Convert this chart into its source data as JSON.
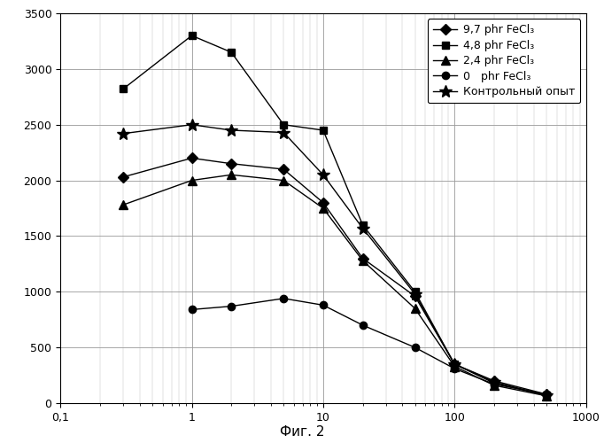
{
  "title": "",
  "fig_label": "Фиг. 2",
  "xlim": [
    0.1,
    1000
  ],
  "ylim": [
    0,
    3500
  ],
  "yticks": [
    0,
    500,
    1000,
    1500,
    2000,
    2500,
    3000,
    3500
  ],
  "background_color": "#ffffff",
  "series": [
    {
      "label": "9,7 phr FeCl₃",
      "marker": "D",
      "x": [
        0.3,
        1.0,
        2.0,
        5.0,
        10.0,
        20.0,
        50.0,
        100.0,
        200.0,
        500.0
      ],
      "y": [
        2030,
        2200,
        2150,
        2100,
        1800,
        1300,
        960,
        350,
        200,
        80
      ]
    },
    {
      "label": "4,8 phr FeCl₃",
      "marker": "s",
      "x": [
        0.3,
        1.0,
        2.0,
        5.0,
        10.0,
        20.0,
        50.0,
        100.0,
        200.0,
        500.0
      ],
      "y": [
        2820,
        3300,
        3150,
        2500,
        2450,
        1600,
        1000,
        350,
        180,
        70
      ]
    },
    {
      "label": "2,4 phr FeCl₃",
      "marker": "^",
      "x": [
        0.3,
        1.0,
        2.0,
        5.0,
        10.0,
        20.0,
        50.0,
        100.0,
        200.0,
        500.0
      ],
      "y": [
        1780,
        2000,
        2050,
        2000,
        1750,
        1280,
        850,
        330,
        160,
        65
      ]
    },
    {
      "label": "0   phr FeCl₃",
      "marker": "o",
      "x": [
        1.0,
        2.0,
        5.0,
        10.0,
        20.0,
        50.0,
        100.0,
        200.0,
        500.0
      ],
      "y": [
        840,
        870,
        940,
        880,
        700,
        500,
        310,
        170,
        80
      ]
    },
    {
      "label": "Контрольный опыт",
      "marker": "*",
      "x": [
        0.3,
        1.0,
        2.0,
        5.0,
        10.0,
        20.0,
        50.0,
        100.0,
        200.0,
        500.0
      ],
      "y": [
        2420,
        2500,
        2450,
        2430,
        2050,
        1570,
        980,
        350,
        190,
        70
      ]
    }
  ],
  "markersizes": {
    "D": 6,
    "s": 6,
    "^": 7,
    "o": 6,
    "*": 10
  },
  "legend_fontsize": 9,
  "tick_fontsize": 9,
  "fig_label_fontsize": 11
}
